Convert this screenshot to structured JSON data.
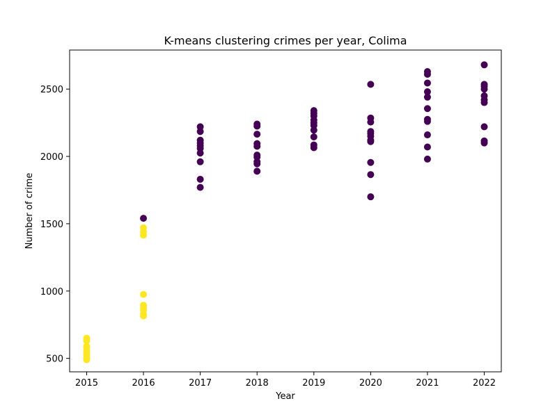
{
  "chart_data": {
    "type": "scatter",
    "title": "K-means clustering crimes per year, Colima",
    "xlabel": "Year",
    "ylabel": "Number of crime",
    "xlim": [
      2014.7,
      2022.3
    ],
    "ylim": [
      400,
      2790
    ],
    "x_ticks": [
      2015,
      2016,
      2017,
      2018,
      2019,
      2020,
      2021,
      2022
    ],
    "y_ticks": [
      500,
      1000,
      1500,
      2000,
      2500
    ],
    "grid": false,
    "legend": "none",
    "clusters": [
      {
        "color": "#fde725",
        "points": [
          [
            2015,
            650
          ],
          [
            2015,
            630
          ],
          [
            2015,
            590
          ],
          [
            2015,
            580
          ],
          [
            2015,
            555
          ],
          [
            2015,
            540
          ],
          [
            2015,
            520
          ],
          [
            2015,
            505
          ],
          [
            2015,
            490
          ],
          [
            2016,
            1470
          ],
          [
            2016,
            1440
          ],
          [
            2016,
            1415
          ],
          [
            2016,
            975
          ],
          [
            2016,
            895
          ],
          [
            2016,
            880
          ],
          [
            2016,
            860
          ],
          [
            2016,
            830
          ],
          [
            2016,
            815
          ]
        ]
      },
      {
        "color": "#440154",
        "points": [
          [
            2016,
            1540
          ],
          [
            2017,
            2220
          ],
          [
            2017,
            2185
          ],
          [
            2017,
            2120
          ],
          [
            2017,
            2100
          ],
          [
            2017,
            2080
          ],
          [
            2017,
            2060
          ],
          [
            2017,
            2025
          ],
          [
            2017,
            1960
          ],
          [
            2017,
            1830
          ],
          [
            2017,
            1770
          ],
          [
            2018,
            2240
          ],
          [
            2018,
            2225
          ],
          [
            2018,
            2165
          ],
          [
            2018,
            2095
          ],
          [
            2018,
            2075
          ],
          [
            2018,
            2010
          ],
          [
            2018,
            1995
          ],
          [
            2018,
            1960
          ],
          [
            2018,
            1945
          ],
          [
            2018,
            1890
          ],
          [
            2019,
            2340
          ],
          [
            2019,
            2320
          ],
          [
            2019,
            2300
          ],
          [
            2019,
            2270
          ],
          [
            2019,
            2250
          ],
          [
            2019,
            2230
          ],
          [
            2019,
            2195
          ],
          [
            2019,
            2145
          ],
          [
            2019,
            2085
          ],
          [
            2019,
            2065
          ],
          [
            2020,
            2535
          ],
          [
            2020,
            2285
          ],
          [
            2020,
            2255
          ],
          [
            2020,
            2185
          ],
          [
            2020,
            2170
          ],
          [
            2020,
            2150
          ],
          [
            2020,
            2120
          ],
          [
            2020,
            2110
          ],
          [
            2020,
            1955
          ],
          [
            2020,
            1865
          ],
          [
            2020,
            1700
          ],
          [
            2021,
            2630
          ],
          [
            2021,
            2610
          ],
          [
            2021,
            2545
          ],
          [
            2021,
            2480
          ],
          [
            2021,
            2440
          ],
          [
            2021,
            2355
          ],
          [
            2021,
            2275
          ],
          [
            2021,
            2260
          ],
          [
            2021,
            2160
          ],
          [
            2021,
            2070
          ],
          [
            2021,
            1980
          ],
          [
            2022,
            2680
          ],
          [
            2022,
            2535
          ],
          [
            2022,
            2520
          ],
          [
            2022,
            2500
          ],
          [
            2022,
            2450
          ],
          [
            2022,
            2420
          ],
          [
            2022,
            2400
          ],
          [
            2022,
            2220
          ],
          [
            2022,
            2115
          ],
          [
            2022,
            2100
          ]
        ]
      }
    ]
  }
}
